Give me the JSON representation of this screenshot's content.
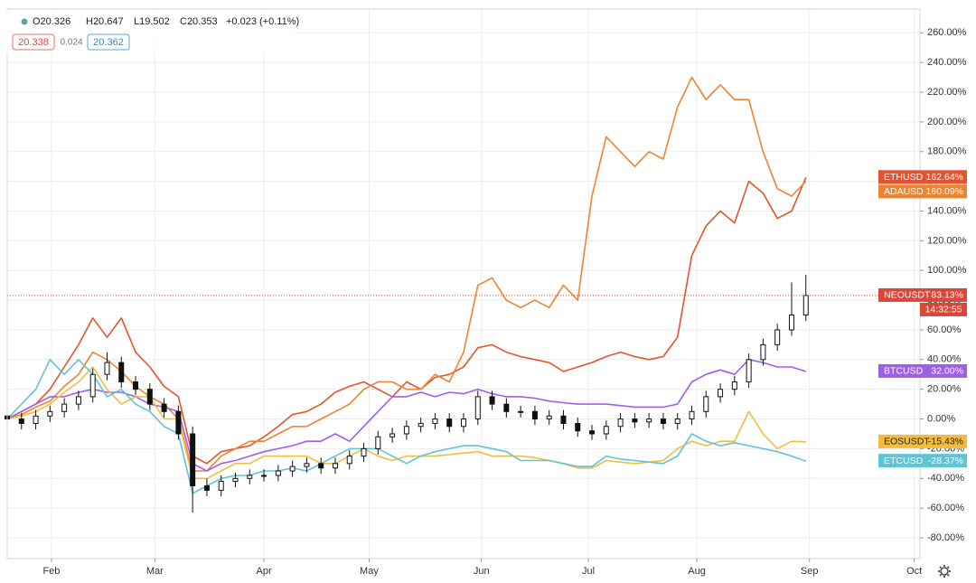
{
  "header": {
    "ohlc": [
      "O20.326",
      "H20.647",
      "L19.502",
      "C20.353",
      "+0.023 (+0.11%)"
    ],
    "badges": [
      "20.338",
      "0.024",
      "20.362"
    ]
  },
  "chart_data": {
    "type": "line",
    "x": [
      0,
      4,
      8,
      12,
      16,
      20,
      24,
      28,
      32,
      36,
      40,
      44,
      48,
      52,
      56,
      60,
      64,
      68,
      72,
      76,
      80,
      84,
      88,
      92,
      96,
      100,
      104,
      108,
      112,
      116,
      120,
      124,
      128,
      132,
      136,
      140,
      144,
      148,
      152,
      156,
      160,
      164,
      168,
      172,
      176,
      180,
      184,
      188,
      192,
      196,
      200,
      204,
      208,
      212,
      216,
      220,
      224
    ],
    "xlim": [
      0,
      256
    ],
    "xticks": [
      {
        "value": 12.4,
        "label": "Feb"
      },
      {
        "value": 41.4,
        "label": "Mar"
      },
      {
        "value": 72,
        "label": "Apr"
      },
      {
        "value": 101.5,
        "label": "May"
      },
      {
        "value": 133,
        "label": "Jun"
      },
      {
        "value": 163,
        "label": "Jul"
      },
      {
        "value": 193.4,
        "label": "Aug"
      },
      {
        "value": 225,
        "label": "Sep"
      },
      {
        "value": 254.4,
        "label": "Oct"
      }
    ],
    "ylim": [
      -94,
      276
    ],
    "yticks": [
      {
        "value": -80,
        "label": "-80.00%"
      },
      {
        "value": -60,
        "label": "-60.00%"
      },
      {
        "value": -40,
        "label": "-40.00%"
      },
      {
        "value": -20,
        "label": "-20.00%"
      },
      {
        "value": 0,
        "label": "0.00%"
      },
      {
        "value": 20,
        "label": "20.00%"
      },
      {
        "value": 40,
        "label": "40.00%"
      },
      {
        "value": 60,
        "label": "60.00%"
      },
      {
        "value": 80,
        "label": "80.00%"
      },
      {
        "value": 100,
        "label": "100.00%"
      },
      {
        "value": 120,
        "label": "120.00%"
      },
      {
        "value": 140,
        "label": "140.00%"
      },
      {
        "value": 160,
        "label": "160.00%"
      },
      {
        "value": 180,
        "label": "180.00%"
      },
      {
        "value": 200,
        "label": "200.00%"
      },
      {
        "value": 220,
        "label": "220.00%"
      },
      {
        "value": 240,
        "label": "240.00%"
      },
      {
        "value": 260,
        "label": "260.00%"
      }
    ],
    "grid": true,
    "series": [
      {
        "name": "ETHUSD",
        "color": "#e5532e",
        "value_label": "162.64%",
        "values": [
          0,
          5,
          10,
          20,
          35,
          50,
          68,
          55,
          68,
          45,
          35,
          22,
          15,
          -25,
          -30,
          -22,
          -20,
          -18,
          -12,
          -5,
          3,
          5,
          10,
          18,
          22,
          25,
          20,
          15,
          25,
          20,
          28,
          30,
          35,
          48,
          50,
          45,
          42,
          40,
          38,
          32,
          35,
          38,
          42,
          45,
          42,
          40,
          42,
          55,
          110,
          130,
          140,
          132,
          160,
          152,
          135,
          140,
          162.64
        ]
      },
      {
        "name": "ADAUSD",
        "color": "#ee8332",
        "value_label": "160.09%",
        "values": [
          0,
          3,
          8,
          12,
          22,
          30,
          45,
          40,
          32,
          22,
          15,
          10,
          0,
          -35,
          -35,
          -25,
          -20,
          -15,
          -15,
          -10,
          -5,
          -5,
          0,
          5,
          10,
          20,
          25,
          25,
          20,
          20,
          30,
          25,
          45,
          90,
          95,
          80,
          75,
          80,
          75,
          90,
          80,
          150,
          190,
          180,
          170,
          180,
          175,
          210,
          230,
          215,
          225,
          215,
          215,
          180,
          155,
          150,
          160.09
        ]
      },
      {
        "name": "BTCUSD",
        "color": "#a05ee6",
        "value_label": "32.00%",
        "values": [
          0,
          5,
          10,
          15,
          15,
          18,
          20,
          18,
          18,
          15,
          10,
          8,
          5,
          -30,
          -35,
          -30,
          -28,
          -25,
          -22,
          -20,
          -18,
          -15,
          -15,
          -10,
          -15,
          -5,
          5,
          15,
          15,
          18,
          15,
          18,
          17,
          20,
          17,
          15,
          15,
          14,
          12,
          11,
          10,
          10,
          10,
          9,
          8,
          8,
          8,
          10,
          25,
          30,
          33,
          30,
          40,
          38,
          35,
          35,
          32.0
        ]
      },
      {
        "name": "EOSUSDT",
        "color": "#f2bd3e",
        "value_label": "-15.43%",
        "values": [
          0,
          2,
          5,
          10,
          18,
          25,
          35,
          20,
          10,
          15,
          15,
          0,
          0,
          -40,
          -40,
          -35,
          -30,
          -30,
          -25,
          -25,
          -25,
          -25,
          -30,
          -30,
          -25,
          -20,
          -25,
          -28,
          -25,
          -25,
          -25,
          -24,
          -23,
          -22,
          -25,
          -25,
          -25,
          -26,
          -28,
          -30,
          -33,
          -33,
          -28,
          -29,
          -30,
          -29,
          -28,
          -20,
          -15,
          -18,
          -15,
          -15,
          5,
          -10,
          -20,
          -15,
          -15.43
        ]
      },
      {
        "name": "ETCUSD",
        "color": "#5ec4d6",
        "value_label": "-28.37%",
        "values": [
          0,
          10,
          20,
          40,
          30,
          40,
          30,
          15,
          20,
          10,
          5,
          -5,
          -10,
          -50,
          -45,
          -40,
          -38,
          -38,
          -35,
          -35,
          -33,
          -35,
          -30,
          -25,
          -20,
          -20,
          -20,
          -25,
          -30,
          -25,
          -22,
          -20,
          -18,
          -18,
          -20,
          -22,
          -28,
          -28,
          -28,
          -30,
          -32,
          -32,
          -25,
          -27,
          -28,
          -29,
          -30,
          -25,
          -10,
          -15,
          -18,
          -16,
          -18,
          -20,
          -22,
          -25,
          -28.37
        ]
      }
    ],
    "candles": {
      "type": "candlestick",
      "name": "NEOUSDT",
      "color": "#d9463a",
      "candle_color": "#111111",
      "value_label": "83.13%",
      "countdown": "14:32:55",
      "open": [
        2,
        0,
        -3,
        2,
        5,
        10,
        15,
        30,
        38,
        25,
        20,
        10,
        5,
        -10,
        -45,
        -48,
        -42,
        -40,
        -38,
        -38,
        -35,
        -32,
        -30,
        -33,
        -30,
        -25,
        -20,
        -12,
        -10,
        -5,
        -3,
        0,
        -5,
        0,
        15,
        10,
        5,
        5,
        0,
        2,
        -3,
        -8,
        -10,
        -5,
        0,
        -2,
        0,
        -3,
        0,
        5,
        15,
        20,
        25,
        40,
        50,
        60,
        70
      ],
      "high": [
        6,
        4,
        6,
        9,
        14,
        19,
        34,
        45,
        42,
        29,
        24,
        14,
        9,
        -5,
        -40,
        -38,
        -36,
        -34,
        -34,
        -31,
        -28,
        -26,
        -26,
        -26,
        -21,
        -16,
        -8,
        -6,
        -1,
        1,
        4,
        4,
        4,
        19,
        19,
        14,
        9,
        9,
        6,
        6,
        1,
        -4,
        -1,
        4,
        4,
        4,
        4,
        4,
        9,
        19,
        24,
        29,
        44,
        54,
        64,
        92,
        97
      ],
      "low": [
        -4,
        -7,
        -7,
        -2,
        1,
        6,
        11,
        26,
        21,
        16,
        6,
        1,
        -14,
        -63,
        -52,
        -52,
        -46,
        -44,
        -42,
        -42,
        -39,
        -36,
        -37,
        -37,
        -34,
        -29,
        -24,
        -16,
        -14,
        -9,
        -7,
        -9,
        -9,
        -4,
        6,
        1,
        1,
        -4,
        -4,
        -7,
        -12,
        -14,
        -14,
        -9,
        -6,
        -6,
        -7,
        -7,
        -4,
        1,
        11,
        16,
        21,
        36,
        46,
        56,
        66
      ],
      "close": [
        0,
        -3,
        2,
        5,
        10,
        15,
        30,
        38,
        25,
        20,
        10,
        5,
        -10,
        -45,
        -48,
        -42,
        -40,
        -38,
        -38,
        -35,
        -32,
        -30,
        -33,
        -30,
        -25,
        -20,
        -12,
        -10,
        -5,
        -3,
        0,
        -5,
        0,
        15,
        10,
        5,
        5,
        0,
        2,
        -3,
        -8,
        -10,
        -5,
        0,
        -2,
        0,
        -3,
        0,
        5,
        15,
        20,
        25,
        40,
        50,
        60,
        70,
        83.13
      ]
    }
  }
}
